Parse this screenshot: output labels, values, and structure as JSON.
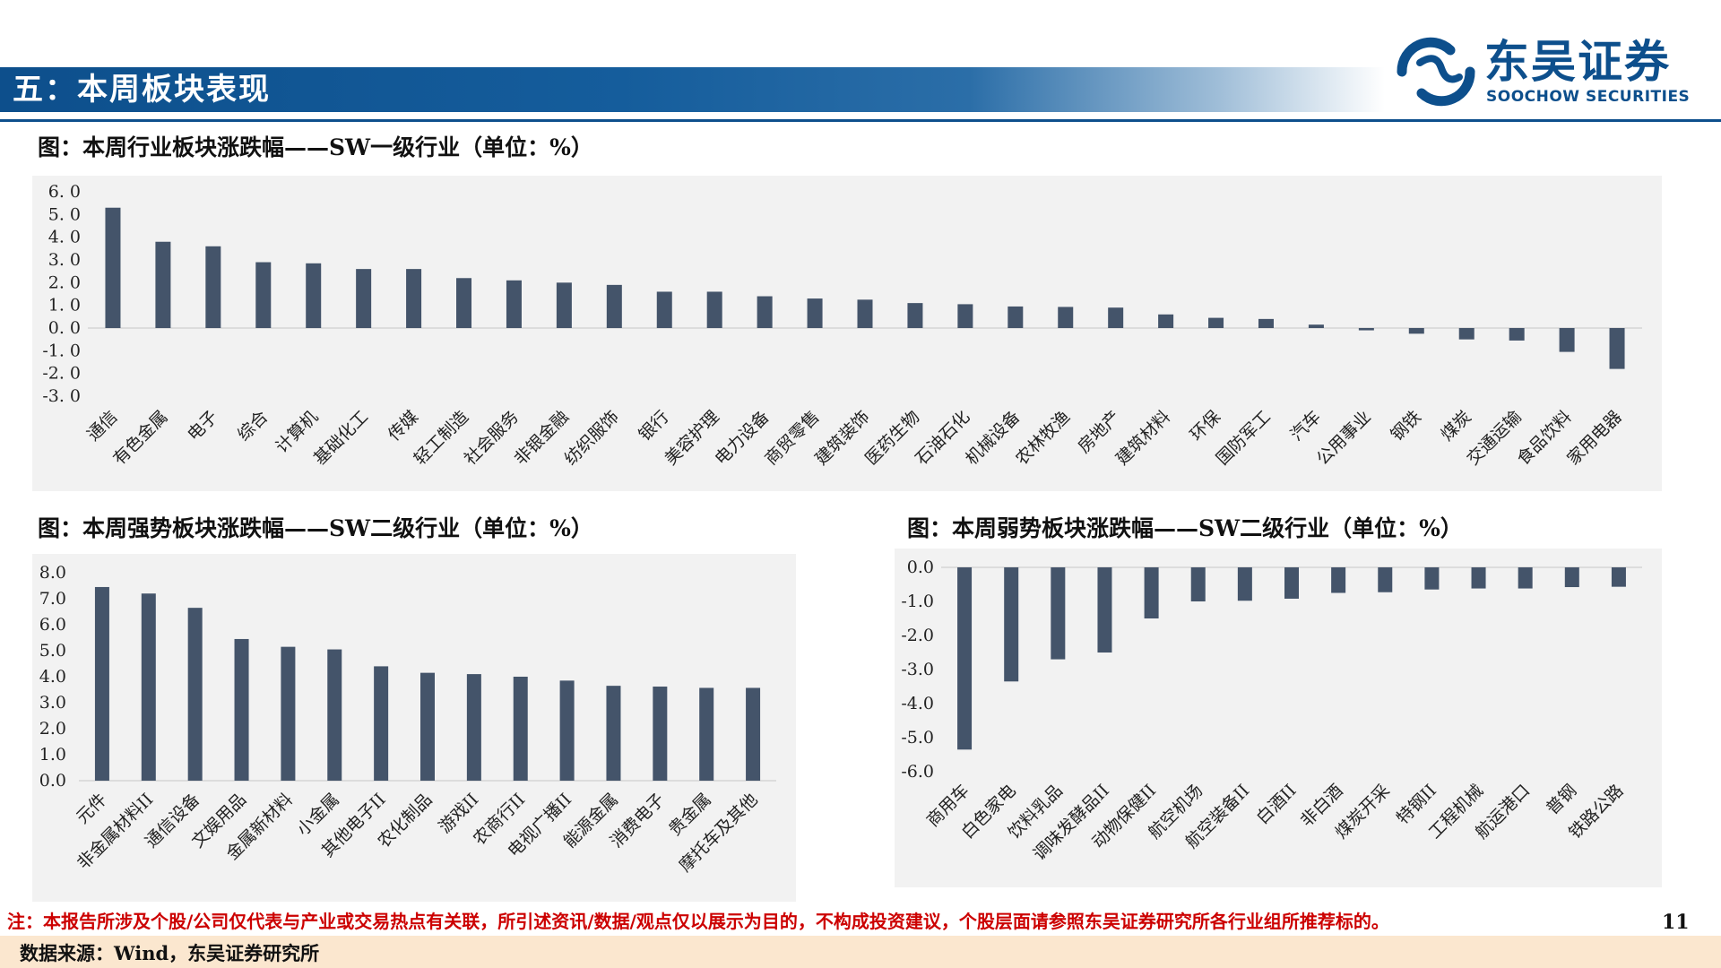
{
  "header": {
    "section_title": "五：本周板块表现"
  },
  "logo": {
    "name_cn": "东吴证券",
    "name_en": "SOOCHOW SECURITIES"
  },
  "colors": {
    "brand": "#0d4f8c",
    "bar": "#44546a",
    "panel_bg": "#f2f2f2",
    "footnote": "#cc0000",
    "source_bg": "#fbe7cf"
  },
  "figures": {
    "fig1_title": "图：本周行业板块涨跌幅——SW一级行业（单位：%）",
    "fig2_title": "图：本周强势板块涨跌幅——SW二级行业（单位：%）",
    "fig3_title": "图：本周弱势板块涨跌幅——SW二级行业（单位：%）"
  },
  "chart_data": [
    {
      "type": "bar",
      "categories": [
        "通信",
        "有色金属",
        "电子",
        "综合",
        "计算机",
        "基础化工",
        "传媒",
        "轻工制造",
        "社会服务",
        "非银金融",
        "纺织服饰",
        "银行",
        "美容护理",
        "电力设备",
        "商贸零售",
        "建筑装饰",
        "医药生物",
        "石油石化",
        "机械设备",
        "农林牧渔",
        "房地产",
        "建筑材料",
        "环保",
        "国防军工",
        "汽车",
        "公用事业",
        "钢铁",
        "煤炭",
        "交通运输",
        "食品饮料",
        "家用电器"
      ],
      "values": [
        5.3,
        3.8,
        3.6,
        2.9,
        2.85,
        2.6,
        2.6,
        2.2,
        2.1,
        2.0,
        1.9,
        1.6,
        1.6,
        1.4,
        1.3,
        1.25,
        1.1,
        1.05,
        0.95,
        0.93,
        0.9,
        0.6,
        0.45,
        0.4,
        0.15,
        -0.1,
        -0.25,
        -0.5,
        -0.55,
        -1.05,
        -1.8
      ],
      "ylim": [
        -3.0,
        6.0
      ],
      "yticks": [
        "6. 0",
        "5. 0",
        "4. 0",
        "3. 0",
        "2. 0",
        "1. 0",
        "0. 0",
        "-1. 0",
        "-2. 0",
        "-3. 0"
      ],
      "grid": false
    },
    {
      "type": "bar",
      "categories": [
        "元件",
        "非金属材料II",
        "通信设备",
        "文娱用品",
        "金属新材料",
        "小金属",
        "其他电子II",
        "农化制品",
        "游戏II",
        "农商行II",
        "电视广播II",
        "能源金属",
        "消费电子",
        "贵金属",
        "摩托车及其他"
      ],
      "values": [
        7.45,
        7.2,
        6.65,
        5.45,
        5.15,
        5.05,
        4.4,
        4.15,
        4.1,
        4.0,
        3.85,
        3.65,
        3.62,
        3.57,
        3.57
      ],
      "ylim": [
        0,
        8.0
      ],
      "yticks": [
        "8.0",
        "7.0",
        "6.0",
        "5.0",
        "4.0",
        "3.0",
        "2.0",
        "1.0",
        "0.0"
      ],
      "grid": false
    },
    {
      "type": "bar",
      "categories": [
        "商用车",
        "白色家电",
        "饮料乳品",
        "调味发酵品II",
        "动物保健II",
        "航空机场",
        "航空装备II",
        "白酒II",
        "非白酒",
        "煤炭开采",
        "特钢II",
        "工程机械",
        "航运港口",
        "普钢",
        "铁路公路"
      ],
      "values": [
        -5.35,
        -3.35,
        -2.7,
        -2.5,
        -1.5,
        -1.0,
        -0.98,
        -0.92,
        -0.75,
        -0.73,
        -0.65,
        -0.62,
        -0.62,
        -0.58,
        -0.57
      ],
      "ylim": [
        -6.0,
        0.0
      ],
      "yticks": [
        "0.0",
        "-1.0",
        "-2.0",
        "-3.0",
        "-4.0",
        "-5.0",
        "-6.0"
      ],
      "grid": false
    }
  ],
  "footer": {
    "note": "注：本报告所涉及个股/公司仅代表与产业或交易热点有关联，所引述资讯/数据/观点仅以展示为目的，不构成投资建议，个股层面请参照东吴证券研究所各行业组所推荐标的。",
    "page": "11",
    "source": "数据来源：Wind，东吴证券研究所"
  }
}
